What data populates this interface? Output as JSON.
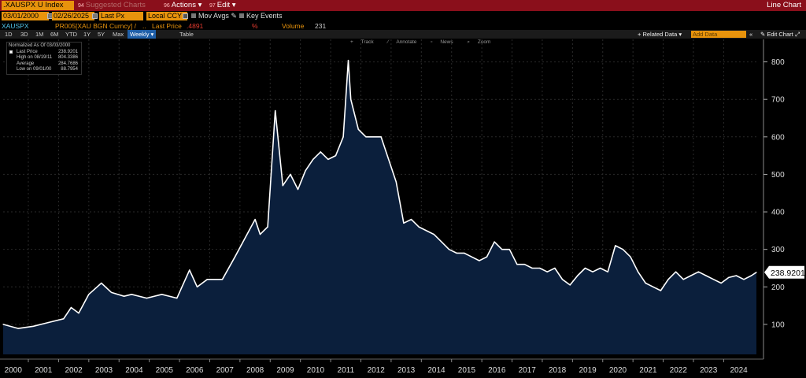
{
  "topbar": {
    "ticker": ".XAUSPX U Index",
    "suggest_num": "94",
    "suggest": "Suggested Charts",
    "actions_num": "96",
    "actions": "Actions",
    "edit_num": "97",
    "edit": "Edit",
    "chart_type": "Line Chart"
  },
  "params": {
    "start_date": "03/01/2000",
    "end_date": "02/26/2025",
    "price_field": "Last Px",
    "currency": "Local CCY",
    "mov_avgs": "Mov Avgs",
    "key_events": "Key Events"
  },
  "security_row": {
    "ticker": "XAUSPX",
    "formula": "PR005[XAU BGN Curncy] /",
    "dots": "..",
    "last_price_label": "Last Price",
    "last_price_value": ".4891",
    "pct": "%",
    "volume_label": "Volume",
    "volume_value": "231"
  },
  "toolbar": {
    "periods": [
      "1D",
      "3D",
      "1M",
      "6M",
      "YTD",
      "1Y",
      "5Y",
      "Max"
    ],
    "frequency": "Weekly",
    "table": "Table",
    "related": "+ Related Data",
    "add_data_placeholder": "Add Data",
    "edit_chart": "Edit Chart"
  },
  "chart_tools": [
    "Track",
    "Annotate",
    "News",
    "Zoom"
  ],
  "legend": {
    "header": "Normalized As Of 03/03/2000",
    "rows": [
      {
        "label": "Last Price",
        "value": "238.9201"
      },
      {
        "label": "High on 08/19/11",
        "value": "804.3386"
      },
      {
        "label": "Average",
        "value": "284.7686"
      },
      {
        "label": "Low on 09/01/00",
        "value": "88.7954"
      }
    ]
  },
  "colors": {
    "line": "#ffffff",
    "fill": "#0b1f3c",
    "accent": "#e8930c",
    "titlebar": "#8a0f1b"
  },
  "chart_data": {
    "type": "area",
    "title": "",
    "xlabel": "",
    "ylabel": "",
    "xlim": [
      "2000-03",
      "2025-02"
    ],
    "ylim": [
      20,
      860
    ],
    "yticks": [
      100,
      200,
      300,
      400,
      500,
      600,
      700,
      800
    ],
    "xticks": [
      "2000",
      "2001",
      "2002",
      "2003",
      "2004",
      "2005",
      "2006",
      "2007",
      "2008",
      "2009",
      "2010",
      "2011",
      "2012",
      "2013",
      "2014",
      "2015",
      "2016",
      "2017",
      "2018",
      "2019",
      "2020",
      "2021",
      "2022",
      "2023",
      "2024"
    ],
    "last_value_label": "238.9201",
    "series": [
      {
        "x": [
          "2000-03",
          "2000-09",
          "2001-03",
          "2001-09",
          "2002-03",
          "2002-06",
          "2002-09",
          "2003-01",
          "2003-06",
          "2003-10",
          "2004-03",
          "2004-06",
          "2004-12",
          "2005-06",
          "2005-12",
          "2006-05",
          "2006-08",
          "2006-12",
          "2007-06",
          "2007-11",
          "2008-03",
          "2008-07",
          "2008-09",
          "2008-12",
          "2009-03",
          "2009-06",
          "2009-09",
          "2009-12",
          "2010-03",
          "2010-06",
          "2010-09",
          "2010-12",
          "2011-03",
          "2011-06",
          "2011-08",
          "2011-09",
          "2011-12",
          "2012-03",
          "2012-06",
          "2012-09",
          "2012-12",
          "2013-03",
          "2013-06",
          "2013-09",
          "2013-12",
          "2014-03",
          "2014-06",
          "2014-09",
          "2014-12",
          "2015-03",
          "2015-06",
          "2015-09",
          "2015-12",
          "2016-03",
          "2016-06",
          "2016-09",
          "2016-12",
          "2017-03",
          "2017-06",
          "2017-09",
          "2017-12",
          "2018-03",
          "2018-06",
          "2018-09",
          "2018-12",
          "2019-03",
          "2019-06",
          "2019-09",
          "2019-12",
          "2020-03",
          "2020-06",
          "2020-09",
          "2020-12",
          "2021-03",
          "2021-06",
          "2021-09",
          "2021-12",
          "2022-03",
          "2022-06",
          "2022-09",
          "2022-12",
          "2023-03",
          "2023-06",
          "2023-09",
          "2023-12",
          "2024-03",
          "2024-06",
          "2024-09",
          "2024-12",
          "2025-02"
        ],
        "values": [
          100,
          89,
          95,
          105,
          115,
          145,
          130,
          180,
          210,
          185,
          175,
          180,
          170,
          180,
          170,
          245,
          200,
          220,
          220,
          280,
          330,
          380,
          340,
          360,
          670,
          470,
          500,
          460,
          510,
          540,
          560,
          540,
          550,
          600,
          804,
          700,
          620,
          600,
          600,
          600,
          540,
          480,
          370,
          380,
          360,
          350,
          340,
          320,
          300,
          290,
          290,
          280,
          270,
          280,
          320,
          300,
          300,
          260,
          260,
          250,
          250,
          240,
          250,
          220,
          205,
          230,
          250,
          240,
          250,
          240,
          310,
          300,
          280,
          240,
          210,
          200,
          190,
          220,
          240,
          220,
          230,
          240,
          230,
          220,
          210,
          225,
          230,
          220,
          230,
          238.92
        ]
      }
    ]
  }
}
